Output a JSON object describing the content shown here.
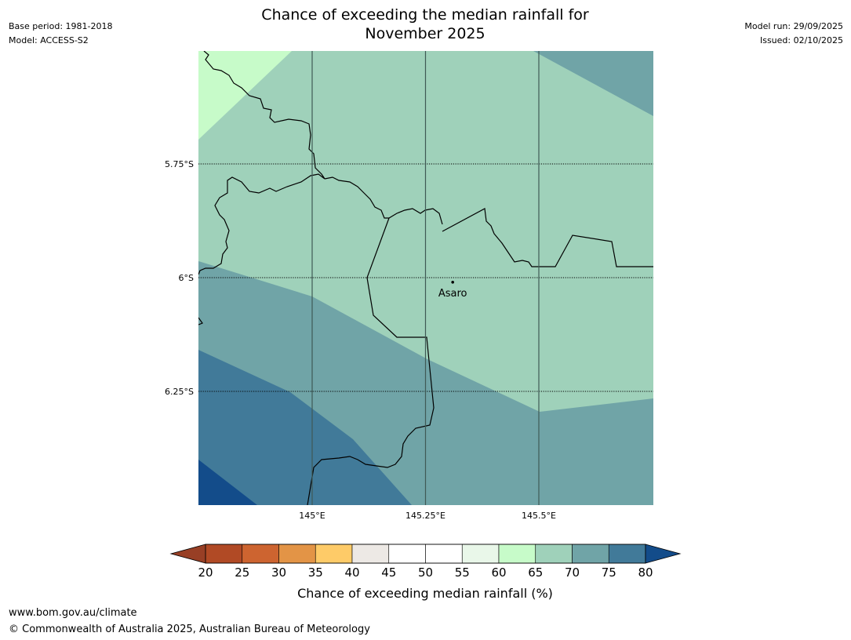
{
  "header": {
    "title_line1": "Chance of exceeding the median rainfall for",
    "title_line2": "November 2025",
    "base_period": "Base period: 1981-2018",
    "model": "Model: ACCESS-S2",
    "model_run": "Model run: 29/09/2025",
    "issued": "Issued: 02/10/2025"
  },
  "map": {
    "place": {
      "name": "Asaro",
      "lat": -6.01,
      "lon": 145.31
    },
    "lat_ticks": [
      {
        "lat": -5.75,
        "label": "5.75°S"
      },
      {
        "lat": -6.0,
        "label": "6°S"
      },
      {
        "lat": -6.25,
        "label": "6.25°S"
      }
    ],
    "lon_ticks": [
      {
        "lon": 145.0,
        "label": "145°E"
      },
      {
        "lon": 145.25,
        "label": "145.25°E"
      },
      {
        "lon": 145.5,
        "label": "145.5°E"
      }
    ],
    "colors": {
      "band_60_65": "#c7fbc9",
      "band_65_70": "#9fd1ba",
      "band_70_75": "#70a4a7",
      "band_75_80": "#417a99",
      "band_80_plus": "#134c8a"
    }
  },
  "colorbar": {
    "label": "Chance of exceeding median rainfall (%)",
    "ticks": [
      "20",
      "25",
      "30",
      "35",
      "40",
      "45",
      "50",
      "55",
      "60",
      "65",
      "70",
      "75",
      "80"
    ],
    "colors": [
      "#b14a25",
      "#cd6430",
      "#e39446",
      "#fecb68",
      "#ede9e5",
      "#ffffff",
      "#ffffff",
      "#e9f7e9",
      "#c7fbc9",
      "#9fd1ba",
      "#70a4a7",
      "#417a99"
    ],
    "under_color": "#983f25",
    "over_color": "#134c8a"
  },
  "footer": {
    "url": "www.bom.gov.au/climate",
    "copyright": "© Commonwealth of Australia 2025, Australian Bureau of Meteorology"
  }
}
